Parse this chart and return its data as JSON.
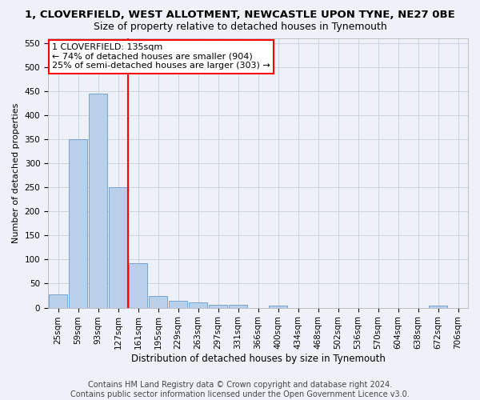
{
  "title": "1, CLOVERFIELD, WEST ALLOTMENT, NEWCASTLE UPON TYNE, NE27 0BE",
  "subtitle": "Size of property relative to detached houses in Tynemouth",
  "xlabel": "Distribution of detached houses by size in Tynemouth",
  "ylabel": "Number of detached properties",
  "bar_color": "#b8d0ea",
  "bar_edge_color": "#6699cc",
  "vline_color": "red",
  "vline_x_index": 3,
  "annotation_text": "1 CLOVERFIELD: 135sqm\n← 74% of detached houses are smaller (904)\n25% of semi-detached houses are larger (303) →",
  "annotation_box_color": "white",
  "annotation_box_edge_color": "red",
  "categories": [
    "25sqm",
    "59sqm",
    "93sqm",
    "127sqm",
    "161sqm",
    "195sqm",
    "229sqm",
    "263sqm",
    "297sqm",
    "331sqm",
    "366sqm",
    "400sqm",
    "434sqm",
    "468sqm",
    "502sqm",
    "536sqm",
    "570sqm",
    "604sqm",
    "638sqm",
    "672sqm",
    "706sqm"
  ],
  "values": [
    27,
    350,
    445,
    250,
    93,
    24,
    14,
    11,
    6,
    6,
    0,
    5,
    0,
    0,
    0,
    0,
    0,
    0,
    0,
    5,
    0
  ],
  "ylim": [
    0,
    560
  ],
  "yticks": [
    0,
    50,
    100,
    150,
    200,
    250,
    300,
    350,
    400,
    450,
    500,
    550
  ],
  "footer_line1": "Contains HM Land Registry data © Crown copyright and database right 2024.",
  "footer_line2": "Contains public sector information licensed under the Open Government Licence v3.0.",
  "background_color": "#eef2f8",
  "plot_background": "#eef2f8",
  "grid_color": "#c8d0dc",
  "title_fontsize": 9.5,
  "subtitle_fontsize": 9,
  "xlabel_fontsize": 8.5,
  "ylabel_fontsize": 8,
  "tick_fontsize": 7.5,
  "annotation_fontsize": 8,
  "footer_fontsize": 7,
  "figsize": [
    6.0,
    5.0
  ],
  "dpi": 100
}
